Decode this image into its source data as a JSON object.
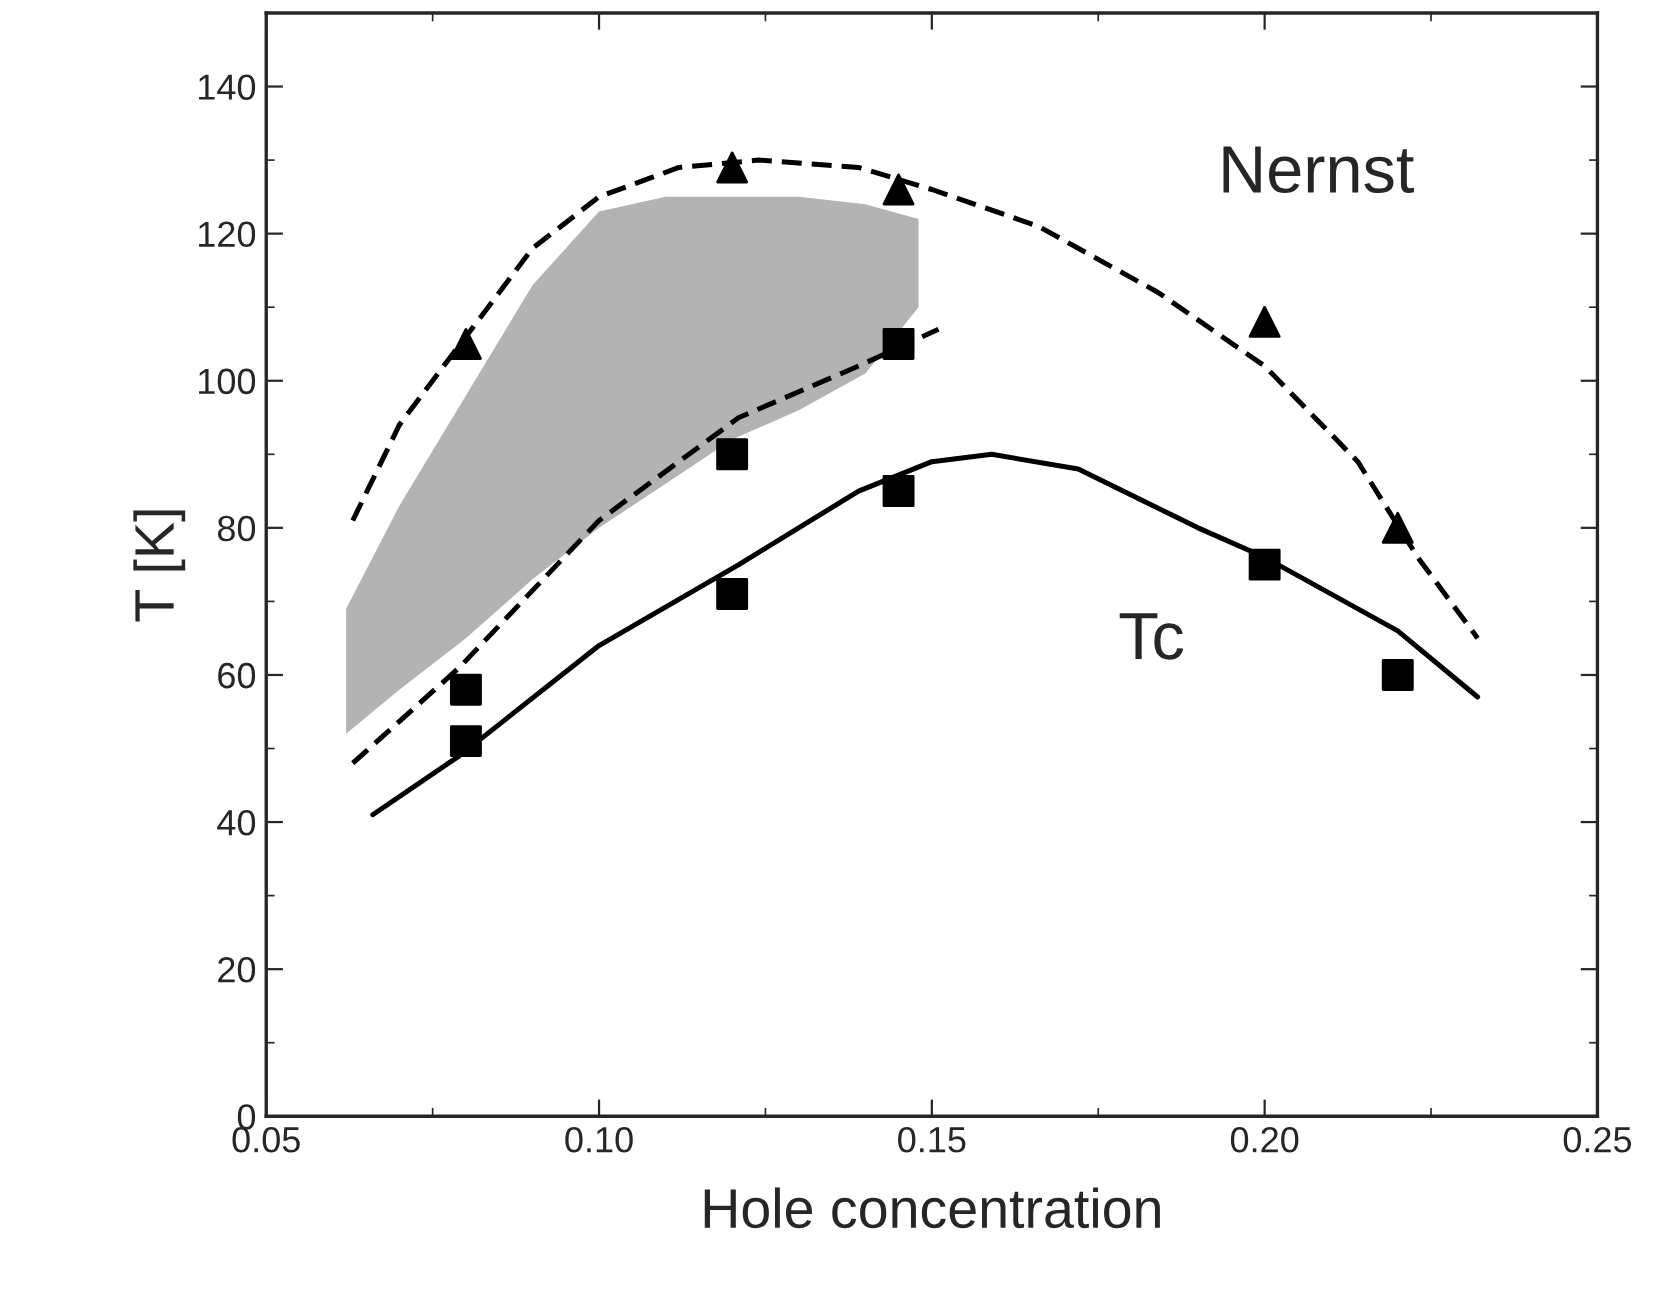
{
  "chart_data": {
    "type": "scatter",
    "xlabel": "Hole concentration",
    "ylabel": "T [K]",
    "xlim": [
      0.05,
      0.25
    ],
    "ylim": [
      0,
      150
    ],
    "xticks": [
      0.05,
      {
        "value": 0.1,
        "label": "0.10"
      },
      0.15,
      {
        "value": 0.2,
        "label": "0.20"
      },
      0.25
    ],
    "yticks": [
      0,
      20,
      40,
      60,
      80,
      100,
      120,
      140
    ],
    "grid": false,
    "legend": false,
    "series": [
      {
        "type": "area",
        "color": "#b3b3b3",
        "x": [
          0.062,
          0.07,
          0.08,
          0.09,
          0.1,
          0.11,
          0.12,
          0.13,
          0.14,
          0.148
        ],
        "values": [
          null,
          null,
          null,
          null,
          null,
          null,
          null,
          null,
          null,
          null
        ],
        "lower": [
          52,
          58,
          65,
          73,
          80,
          86,
          92,
          96,
          101,
          110
        ],
        "upper": [
          69,
          83,
          98,
          113,
          123,
          125,
          125,
          125,
          124,
          122
        ]
      },
      {
        "type": "line",
        "color": "#000000",
        "line_style": "dashed",
        "marker": "none",
        "x": [
          0.063,
          0.07,
          0.08,
          0.09,
          0.1,
          0.112,
          0.124,
          0.139,
          0.15,
          0.166,
          0.184,
          0.2,
          0.214,
          0.223,
          0.232
        ],
        "values": [
          81,
          94,
          106,
          118,
          125,
          129,
          130,
          129,
          126,
          121,
          112,
          102,
          89,
          76,
          65
        ]
      },
      {
        "type": "line",
        "color": "#000000",
        "line_style": "dashed",
        "marker": "none",
        "x": [
          0.063,
          0.079,
          0.1,
          0.121,
          0.139,
          0.151
        ],
        "values": [
          48,
          61,
          81,
          95,
          102,
          107
        ]
      },
      {
        "type": "line",
        "color": "#000000",
        "line_style": "solid",
        "marker": "none",
        "x": [
          0.066,
          0.079,
          0.1,
          0.121,
          0.139,
          0.15,
          0.159,
          0.172,
          0.19,
          0.2,
          0.22,
          0.232
        ],
        "values": [
          41,
          49,
          64,
          75,
          85,
          89,
          90,
          88,
          80,
          76,
          66,
          57
        ]
      },
      {
        "color": "#000000",
        "marker": "triangle",
        "x": [
          0.08,
          0.12,
          0.145,
          0.2,
          0.22
        ],
        "values": [
          105,
          129,
          126,
          108,
          80
        ]
      },
      {
        "color": "#000000",
        "marker": "square",
        "x": [
          0.08,
          0.12,
          0.145
        ],
        "values": [
          58,
          90,
          105
        ]
      },
      {
        "color": "#000000",
        "marker": "square",
        "x": [
          0.08,
          0.12,
          0.145,
          0.2,
          0.22
        ],
        "values": [
          51,
          71,
          85,
          75,
          60
        ]
      }
    ],
    "annotations": [
      "Nernst",
      "Tc"
    ]
  }
}
